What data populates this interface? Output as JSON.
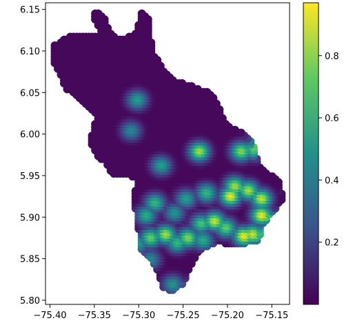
{
  "chart_data": {
    "type": "scatter",
    "title": "",
    "xlabel": "",
    "ylabel": "",
    "xlim": [
      -75.405,
      -75.13
    ],
    "ylim": [
      5.795,
      6.158
    ],
    "xticks": [
      -75.4,
      -75.35,
      -75.3,
      -75.25,
      -75.2,
      -75.15
    ],
    "xtick_labels": [
      "−75.40",
      "−75.35",
      "−75.30",
      "−75.25",
      "−75.20",
      "−75.15"
    ],
    "yticks": [
      5.8,
      5.85,
      5.9,
      5.95,
      6.0,
      6.05,
      6.1,
      6.15
    ],
    "ytick_labels": [
      "5.80",
      "5.85",
      "5.90",
      "5.95",
      "6.00",
      "6.05",
      "6.10",
      "6.15"
    ],
    "grid": false,
    "legend": "none",
    "colormap": "viridis",
    "colorbar": {
      "range": [
        0.0,
        0.97
      ],
      "ticks": [
        0.2,
        0.4,
        0.6,
        0.8
      ],
      "tick_labels": [
        "0.2",
        "0.4",
        "0.6",
        "0.8"
      ]
    },
    "hotspots": [
      {
        "x": -75.3,
        "y": 6.044,
        "value": 0.55
      },
      {
        "x": -75.307,
        "y": 6.007,
        "value": 0.45
      },
      {
        "x": -75.273,
        "y": 5.965,
        "value": 0.55
      },
      {
        "x": -75.23,
        "y": 5.982,
        "value": 0.85
      },
      {
        "x": -75.183,
        "y": 5.982,
        "value": 0.8
      },
      {
        "x": -75.168,
        "y": 5.984,
        "value": 0.75
      },
      {
        "x": -75.19,
        "y": 5.94,
        "value": 0.85
      },
      {
        "x": -75.175,
        "y": 5.935,
        "value": 0.85
      },
      {
        "x": -75.195,
        "y": 5.928,
        "value": 0.95
      },
      {
        "x": -75.16,
        "y": 5.925,
        "value": 0.9
      },
      {
        "x": -75.222,
        "y": 5.932,
        "value": 0.65
      },
      {
        "x": -75.245,
        "y": 5.925,
        "value": 0.55
      },
      {
        "x": -75.28,
        "y": 5.92,
        "value": 0.65
      },
      {
        "x": -75.29,
        "y": 5.905,
        "value": 0.6
      },
      {
        "x": -75.258,
        "y": 5.908,
        "value": 0.5
      },
      {
        "x": -75.213,
        "y": 5.898,
        "value": 0.9
      },
      {
        "x": -75.228,
        "y": 5.895,
        "value": 0.7
      },
      {
        "x": -75.2,
        "y": 5.89,
        "value": 0.75
      },
      {
        "x": -75.16,
        "y": 5.905,
        "value": 0.95
      },
      {
        "x": -75.18,
        "y": 5.88,
        "value": 0.95
      },
      {
        "x": -75.17,
        "y": 5.882,
        "value": 0.9
      },
      {
        "x": -75.268,
        "y": 5.882,
        "value": 0.85
      },
      {
        "x": -75.285,
        "y": 5.878,
        "value": 0.75
      },
      {
        "x": -75.243,
        "y": 5.878,
        "value": 0.8
      },
      {
        "x": -75.255,
        "y": 5.872,
        "value": 0.65
      },
      {
        "x": -75.226,
        "y": 5.875,
        "value": 0.6
      },
      {
        "x": -75.3,
        "y": 5.87,
        "value": 0.55
      },
      {
        "x": -75.285,
        "y": 5.852,
        "value": 0.45
      },
      {
        "x": -75.26,
        "y": 5.822,
        "value": 0.5
      }
    ]
  }
}
